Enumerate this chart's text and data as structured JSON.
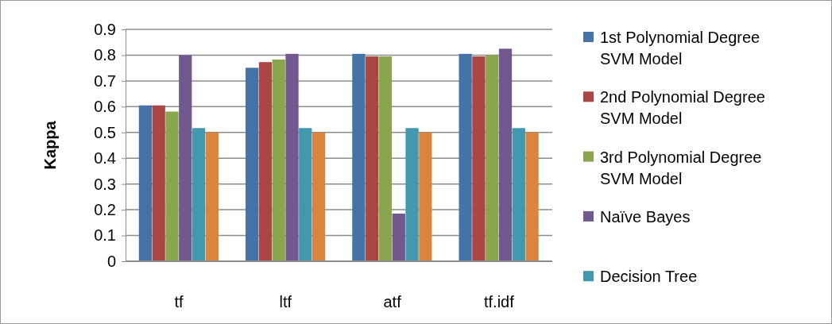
{
  "chart_data": {
    "type": "bar",
    "ylabel": "Kappa",
    "categories": [
      "tf",
      "ltf",
      "atf",
      "tf.idf"
    ],
    "series": [
      {
        "name": "1st Polynomial Degree SVM Model",
        "color": "#4572a7",
        "values": [
          0.605,
          0.751,
          0.805,
          0.805
        ]
      },
      {
        "name": "2nd Polynomial Degree SVM Model",
        "color": "#aa4643",
        "values": [
          0.605,
          0.773,
          0.795,
          0.795
        ]
      },
      {
        "name": "3rd Polynomial Degree SVM Model",
        "color": "#89a54e",
        "values": [
          0.581,
          0.783,
          0.795,
          0.8
        ]
      },
      {
        "name": "Naïve Bayes",
        "color": "#71588f",
        "values": [
          0.8,
          0.805,
          0.185,
          0.825
        ]
      },
      {
        "name": "Decision Tree",
        "color": "#4198af",
        "values": [
          0.517,
          0.517,
          0.517,
          0.517
        ]
      },
      {
        "color": "#db843d",
        "values": [
          0.5,
          0.5,
          0.5,
          0.5
        ]
      }
    ],
    "ylim": [
      0,
      0.9
    ],
    "yticks": [
      0,
      0.1,
      0.2,
      0.3,
      0.4,
      0.5,
      0.6,
      0.7,
      0.8,
      0.9
    ],
    "grid": "y",
    "legend": "right"
  }
}
